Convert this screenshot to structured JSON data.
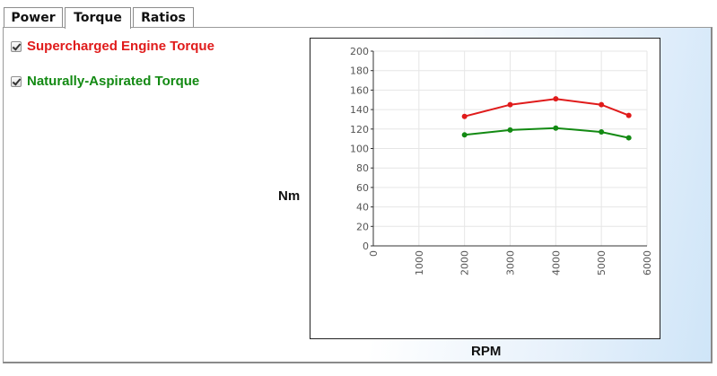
{
  "tabs": [
    {
      "label": "Power",
      "active": false
    },
    {
      "label": "Torque",
      "active": true
    },
    {
      "label": "Ratios",
      "active": false
    }
  ],
  "legend": [
    {
      "label": "Supercharged Engine Torque",
      "color": "#e01b1b",
      "checked": true
    },
    {
      "label": "Naturally-Aspirated Torque",
      "color": "#138a13",
      "checked": true
    }
  ],
  "chart_data": {
    "type": "line",
    "xlabel": "RPM",
    "ylabel": "Nm",
    "xlim": [
      0,
      6000
    ],
    "ylim": [
      0,
      200
    ],
    "xticks": [
      0,
      1000,
      2000,
      3000,
      4000,
      5000,
      6000
    ],
    "yticks": [
      0,
      20,
      40,
      60,
      80,
      100,
      120,
      140,
      160,
      180,
      200
    ],
    "grid": true,
    "series": [
      {
        "name": "Supercharged Engine Torque",
        "color": "#e01b1b",
        "x": [
          2000,
          3000,
          4000,
          5000,
          5600
        ],
        "y": [
          133,
          145,
          151,
          145,
          134
        ]
      },
      {
        "name": "Naturally-Aspirated Torque",
        "color": "#138a13",
        "x": [
          2000,
          3000,
          4000,
          5000,
          5600
        ],
        "y": [
          114,
          119,
          121,
          117,
          111
        ]
      }
    ]
  }
}
